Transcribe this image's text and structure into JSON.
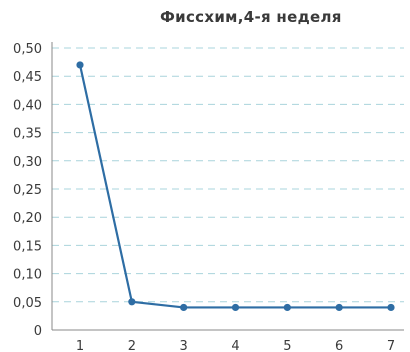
{
  "chart_data": {
    "type": "line",
    "title": "Фиссхим,4-я неделя",
    "xlabel": "",
    "ylabel": "",
    "x": [
      1,
      2,
      3,
      4,
      5,
      6,
      7
    ],
    "x_tick_labels": [
      "1",
      "2",
      "3",
      "4",
      "5",
      "6",
      "7"
    ],
    "series": [
      {
        "values": [
          0.47,
          0.05,
          0.04,
          0.04,
          0.04,
          0.04,
          0.04
        ],
        "color": "#2e6da4"
      }
    ],
    "ylim": [
      0,
      0.5
    ],
    "y_ticks": [
      0,
      0.05,
      0.1,
      0.15,
      0.2,
      0.25,
      0.3,
      0.35,
      0.4,
      0.45,
      0.5
    ],
    "y_tick_labels": [
      "0",
      "0,05",
      "0,10",
      "0,15",
      "0,20",
      "0,25",
      "0,30",
      "0,35",
      "0,40",
      "0,45",
      "0,50"
    ],
    "grid": true,
    "grid_color": "#a9d4dc",
    "axis_color": "#888888",
    "legend": "none"
  }
}
